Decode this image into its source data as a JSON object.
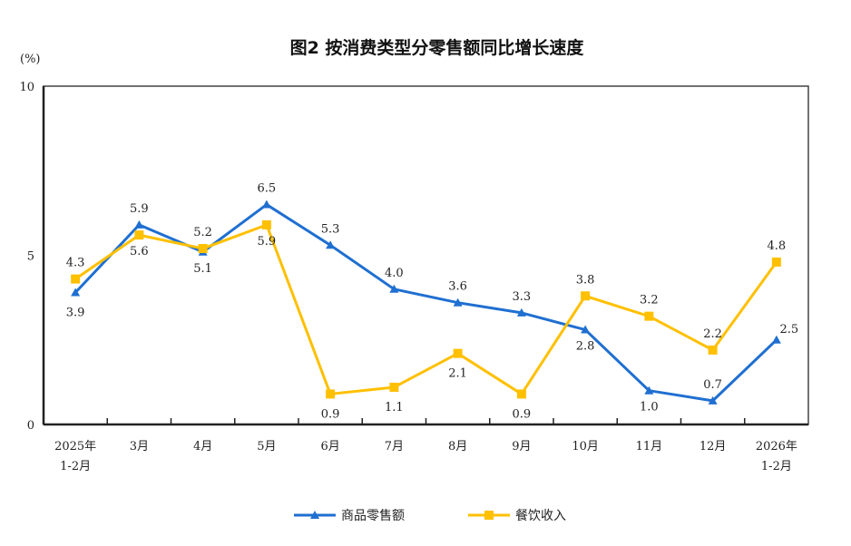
{
  "chart_data": {
    "type": "line",
    "title": "图2 按消费类型分零售额同比增长速度",
    "ylabel": "(%)",
    "ylim": [
      0,
      10
    ],
    "yticks": [
      "0",
      "5",
      "10"
    ],
    "categories": [
      "2025年\n1-2月",
      "3月",
      "4月",
      "5月",
      "6月",
      "7月",
      "8月",
      "9月",
      "10月",
      "11月",
      "12月",
      "2026年\n1-2月"
    ],
    "grid": false,
    "legend": "bottom",
    "series": [
      {
        "name": "商品零售额",
        "color": "#1f6fd1",
        "marker": "triangle",
        "values": [
          3.9,
          5.9,
          5.1,
          6.5,
          5.3,
          4.0,
          3.6,
          3.3,
          2.8,
          1.0,
          0.7,
          2.5
        ]
      },
      {
        "name": "餐饮收入",
        "color": "#ffc000",
        "marker": "square",
        "values": [
          4.3,
          5.6,
          5.2,
          5.9,
          0.9,
          1.1,
          2.1,
          0.9,
          3.8,
          3.2,
          2.2,
          4.8
        ]
      }
    ]
  }
}
